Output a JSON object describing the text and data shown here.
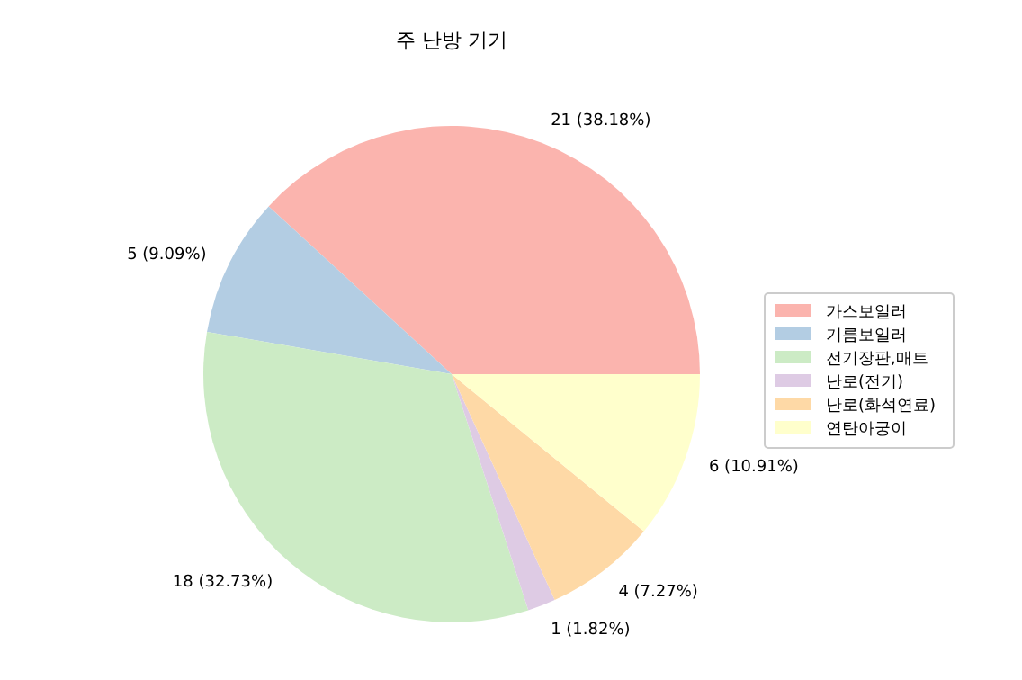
{
  "chart_data": {
    "type": "pie",
    "title": "주 난방 기기",
    "categories": [
      "가스보일러",
      "기름보일러",
      "전기장판,매트",
      "난로(전기)",
      "난로(화석연료)",
      "연탄아궁이"
    ],
    "values": [
      21,
      5,
      18,
      1,
      4,
      6
    ],
    "colors": [
      "#fbb4ae",
      "#b3cde3",
      "#ccebc5",
      "#decbe4",
      "#fed9a6",
      "#ffffcc"
    ],
    "value_labels": [
      "21 (38.18%)",
      "5 (9.09%)",
      "18 (32.73%)",
      "1 (1.82%)",
      "4 (7.27%)",
      "6 (10.91%)"
    ],
    "legend": "right"
  }
}
